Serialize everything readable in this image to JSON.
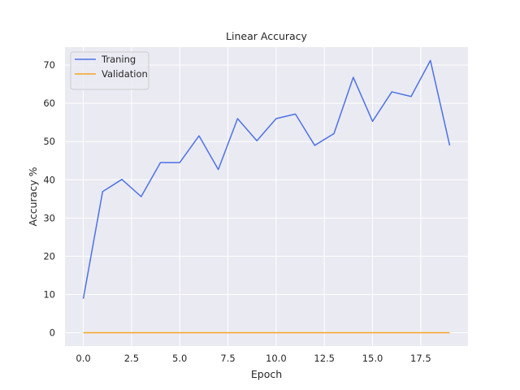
{
  "chart_data": {
    "type": "line",
    "title": "Linear Accuracy",
    "xlabel": "Epoch",
    "ylabel": "Accuracy %",
    "xlim": [
      -0.95,
      19.95
    ],
    "ylim": [
      -3.5,
      74.7
    ],
    "xticks": [
      0.0,
      2.5,
      5.0,
      7.5,
      10.0,
      12.5,
      15.0,
      17.5
    ],
    "xtick_labels": [
      "0.0",
      "2.5",
      "5.0",
      "7.5",
      "10.0",
      "12.5",
      "15.0",
      "17.5"
    ],
    "yticks": [
      0,
      10,
      20,
      30,
      40,
      50,
      60,
      70
    ],
    "ytick_labels": [
      "0",
      "10",
      "20",
      "30",
      "40",
      "50",
      "60",
      "70"
    ],
    "grid": true,
    "legend_position": "top-left",
    "background": "#eaeaf2",
    "x": [
      0,
      1,
      2,
      3,
      4,
      5,
      6,
      7,
      8,
      9,
      10,
      11,
      12,
      13,
      14,
      15,
      16,
      17,
      18,
      19
    ],
    "series": [
      {
        "name": "Traning",
        "color": "#4c72e6",
        "values": [
          8.9,
          36.9,
          40.1,
          35.6,
          44.5,
          44.5,
          51.5,
          42.7,
          56.0,
          50.2,
          56.0,
          57.2,
          49.0,
          52.1,
          66.8,
          55.3,
          63.0,
          61.8,
          71.2,
          49.0
        ]
      },
      {
        "name": "Validation",
        "color": "#f5a623",
        "values": [
          0,
          0,
          0,
          0,
          0,
          0,
          0,
          0,
          0,
          0,
          0,
          0,
          0,
          0,
          0,
          0,
          0,
          0,
          0,
          0
        ]
      }
    ]
  }
}
